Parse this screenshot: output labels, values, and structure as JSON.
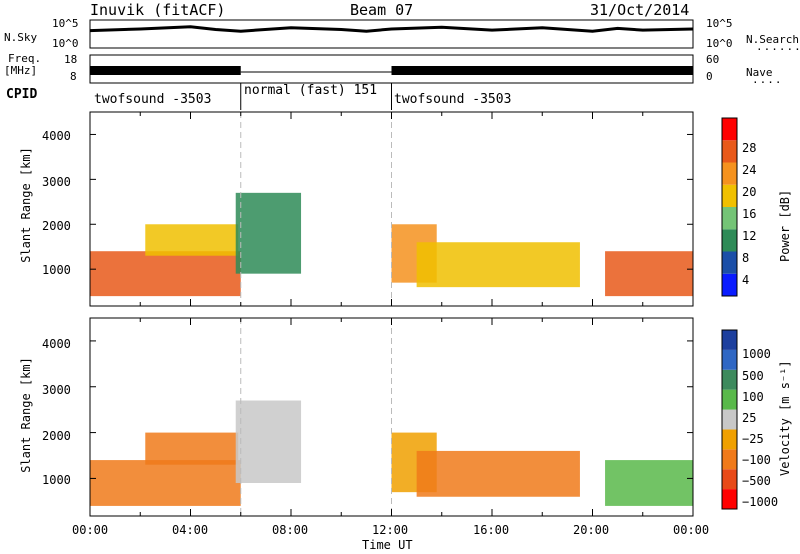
{
  "header": {
    "station": "Inuvik (fitACF)",
    "beam": "Beam 07",
    "date": "31/Oct/2014"
  },
  "side_labels": {
    "nsky": "N.Sky",
    "freq_line1": "Freq.",
    "freq_line2": "[MHz]",
    "cpid": "CPID",
    "nsearch": "N.Search",
    "nave": "Nave",
    "nsearch_dots": "........",
    "nave_dots": "...."
  },
  "noise_axis": {
    "top": "10^5",
    "bottom": "10^0",
    "right_top": "10^5",
    "right_bottom": "10^0"
  },
  "freq_axis": {
    "left": [
      "18",
      "8"
    ],
    "right": [
      "60",
      "0"
    ]
  },
  "cpid_segments": [
    {
      "label": "twofsound -3503",
      "start_hour": 0,
      "end_hour": 6
    },
    {
      "label": "normal (fast) 151",
      "start_hour": 6,
      "end_hour": 12
    },
    {
      "label": "twofsound -3503",
      "start_hour": 12,
      "end_hour": 24
    }
  ],
  "x_axis": {
    "label": "Time UT",
    "ticks": [
      "00:00",
      "04:00",
      "08:00",
      "12:00",
      "16:00",
      "20:00",
      "00:00"
    ]
  },
  "y_axis": {
    "label": "Slant Range [km]",
    "ticks": [
      "1000",
      "2000",
      "3000",
      "4000"
    ]
  },
  "colorbars": {
    "power": {
      "label": "Power [dB]",
      "ticks": [
        "4",
        "8",
        "12",
        "16",
        "20",
        "24",
        "28"
      ]
    },
    "velocity": {
      "label": "Velocity [m s⁻¹]",
      "ticks": [
        "1000",
        "500",
        "100",
        "25",
        "−25",
        "−100",
        "−500",
        "−1000"
      ]
    }
  },
  "colors": {
    "power_scale": [
      "#0a1cff",
      "#1b4fa8",
      "#2e8b57",
      "#74c476",
      "#f0c000",
      "#f5921e",
      "#e8591a",
      "#ff0000"
    ],
    "velocity_scale": [
      "#1d3f9e",
      "#2f67c4",
      "#3d8a5d",
      "#59b94a",
      "#c8c8c8",
      "#f0a000",
      "#f07a1a",
      "#e84a18",
      "#ff0000"
    ]
  },
  "chart_data": [
    {
      "type": "line",
      "series": [
        {
          "name": "N.Sky",
          "x_hours": [
            0,
            2,
            4,
            5,
            6,
            8,
            10,
            11,
            12,
            14,
            16,
            18,
            20,
            21,
            22,
            24
          ],
          "log10_values": [
            3.1,
            3.4,
            3.8,
            3.3,
            3.0,
            3.6,
            3.3,
            3.0,
            3.4,
            3.7,
            3.2,
            3.6,
            3.0,
            3.5,
            3.2,
            3.4
          ]
        }
      ]
    },
    {
      "type": "heatmap",
      "title": "Power",
      "xlabel": "Time UT",
      "ylabel": "Slant Range [km]",
      "xlim": [
        0,
        24
      ],
      "ylim": [
        180,
        4500
      ],
      "colorbar_ticks": [
        4,
        8,
        12,
        16,
        20,
        24,
        28
      ],
      "echo_regions": [
        {
          "t0": 0,
          "t1": 6,
          "r0": 400,
          "r1": 1400,
          "power": 26
        },
        {
          "t0": 2.2,
          "t1": 5.9,
          "r0": 1300,
          "r1": 2000,
          "power": 16
        },
        {
          "t0": 5.8,
          "t1": 8.4,
          "r0": 900,
          "r1": 2700,
          "power": 10
        },
        {
          "t0": 12,
          "t1": 13.8,
          "r0": 700,
          "r1": 2000,
          "power": 20
        },
        {
          "t0": 13,
          "t1": 19.5,
          "r0": 600,
          "r1": 1600,
          "power": 18
        },
        {
          "t0": 20.5,
          "t1": 24,
          "r0": 400,
          "r1": 1400,
          "power": 26
        }
      ]
    },
    {
      "type": "heatmap",
      "title": "Velocity",
      "xlabel": "Time UT",
      "ylabel": "Slant Range [km]",
      "xlim": [
        0,
        24
      ],
      "ylim": [
        180,
        4500
      ],
      "colorbar_ticks": [
        1000,
        500,
        100,
        25,
        -25,
        -100,
        -500,
        -1000
      ],
      "echo_regions": [
        {
          "t0": 0,
          "t1": 6,
          "r0": 400,
          "r1": 1400,
          "velocity": -150
        },
        {
          "t0": 2.2,
          "t1": 5.9,
          "r0": 1300,
          "r1": 2000,
          "velocity": -120
        },
        {
          "t0": 5.8,
          "t1": 8.4,
          "r0": 900,
          "r1": 2700,
          "velocity": 0
        },
        {
          "t0": 12,
          "t1": 13.8,
          "r0": 700,
          "r1": 2000,
          "velocity": -80
        },
        {
          "t0": 13,
          "t1": 19.5,
          "r0": 600,
          "r1": 1600,
          "velocity": -200
        },
        {
          "t0": 20.5,
          "t1": 24,
          "r0": 400,
          "r1": 1400,
          "velocity": 30
        }
      ]
    }
  ]
}
